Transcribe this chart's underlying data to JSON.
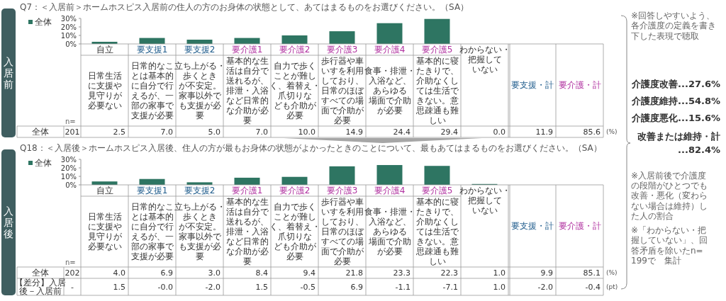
{
  "chart_data": [
    {
      "type": "bar",
      "title": "Q7：＜入居前＞ホームホスピス入居前の住人の方のお身体の状態として、あてはまるものをお選びください。（SA）",
      "categories": [
        "自立",
        "要支援1",
        "要支援2",
        "要介護1",
        "要介護2",
        "要介護3",
        "要介護4",
        "要介護5",
        "わからない・把握していない"
      ],
      "series": [
        {
          "name": "全体",
          "color": "#2e7562",
          "values": [
            2.5,
            7.0,
            5.0,
            7.0,
            10.0,
            14.9,
            24.4,
            29.4,
            0.0
          ],
          "value_labels": [
            "2.5",
            "7.0",
            "5.0",
            "7.0",
            "10.0",
            "14.9",
            "24.4",
            "29.4",
            "0.0"
          ]
        }
      ],
      "ylim": [
        0,
        30
      ],
      "yticks": [
        {
          "value": 0,
          "label": "0%"
        },
        {
          "value": 10,
          "label": "10%"
        },
        {
          "value": 20,
          "label": "20%"
        },
        {
          "value": 30,
          "label": "30%"
        }
      ],
      "legend": "top left",
      "annotations": [
        "日常生活に支援や見守りが必要ない",
        "日常的なことは基本的に自分で行えるが、一部の家事で支援が必要",
        "立ち上がる・歩くときが不安定。家事以外でも支援が必要",
        "基本的な生活は自分で送れるが、排泄・入浴など日常的な介助が必要",
        "自力で歩くことが難しく、着替え・爪切りなども介助が必要",
        "歩行器や車いすを利用しており、日常のほぼすべての場面で介助が必要",
        "食事・排泄・入浴など、あらゆる場面で介助が必要",
        "基本的に寝たきりで、介助なくしては生活できない。意思疎通も難しい",
        "要支援・計",
        "要介護・計",
        "全体",
        "n=",
        "201",
        "11.9",
        "85.6",
        "(%)",
        "入居前"
      ]
    },
    {
      "type": "bar",
      "title": "Q18：＜入居後＞ホームホスピス入居後、住人の方が最もお身体の状態がよかったときのことについて、最もあてはまるものをお選びください。（SA）",
      "categories": [
        "自立",
        "要支援1",
        "要支援2",
        "要介護1",
        "要介護2",
        "要介護3",
        "要介護4",
        "要介護5",
        "わからない・把握していない"
      ],
      "series": [
        {
          "name": "全体",
          "color": "#2e7562",
          "values": [
            4.0,
            6.9,
            3.0,
            8.4,
            9.4,
            21.8,
            23.3,
            22.3,
            1.0
          ],
          "value_labels": [
            "4.0",
            "6.9",
            "3.0",
            "8.4",
            "9.4",
            "21.8",
            "23.3",
            "22.3",
            "1.0"
          ]
        }
      ],
      "ylim": [
        0,
        30
      ],
      "yticks": [
        {
          "value": 0,
          "label": "0%"
        },
        {
          "value": 10,
          "label": "10%"
        },
        {
          "value": 20,
          "label": "20%"
        },
        {
          "value": 30,
          "label": "30%"
        }
      ],
      "legend": "top left",
      "annotations": [
        "日常生活に支援や見守りが必要ない",
        "日常的なことは基本的に自分で行えるが、一部の家事で支援が必要",
        "立ち上がる・歩くときが不安定。家事以外でも支援が必要",
        "基本的な生活は自分で送れるが、排泄・入浴など日常的な介助が必要",
        "自力で歩くことが難しく、着替え・爪切りなども介助が必要",
        "歩行器や車いすを利用しており、日常のほぼすべての場面で介助が必要",
        "食事・排泄・入浴など、あらゆる場面で介助が必要",
        "基本的に寝たきりで、介助なくしては生活できない。意思疎通も難しい",
        "要支援・計",
        "要介護・計",
        "全体",
        "n=",
        "202",
        "9.9",
        "85.1",
        "(%)",
        "入居後",
        "【差分】入居後－入居前",
        "-",
        "1.5",
        "-0.0",
        "-2.0",
        "1.5",
        "-0.5",
        "6.9",
        "-1.1",
        "-7.1",
        "1.0",
        "-2.0",
        "-0.4",
        "(pt)"
      ]
    },
    {
      "type": "other",
      "annotations": [
        "※回答しやすいよう、各介護度の定義を書き下した表現で聴取",
        "介護度改善...27.6%",
        "介護度維持...54.8%",
        "介護度悪化...15.6%",
        "改善または維持・計",
        "...82.4%",
        "※入居前後で介護度の段階がひとつでも改善・悪化（変わらない場合は維持）した人の割合",
        "※「わからない・把握していない」、回答矛盾を除いたn=199で　集計"
      ]
    }
  ]
}
